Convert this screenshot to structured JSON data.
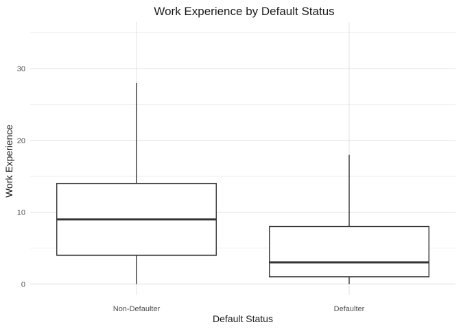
{
  "chart_data": {
    "type": "box",
    "title": "Work Experience by Default Status",
    "xlabel": "Default Status",
    "ylabel": "Work Experience",
    "ylim": [
      -1.5,
      36.5
    ],
    "y_ticks": [
      0,
      10,
      20,
      30
    ],
    "grid": true,
    "legend": "none",
    "categories": [
      "Non-Defaulter",
      "Defaulter"
    ],
    "boxes": [
      {
        "category": "Non-Defaulter",
        "min": 0,
        "q1": 4,
        "median": 9,
        "q3": 14,
        "max": 28
      },
      {
        "category": "Defaulter",
        "min": 0,
        "q1": 1,
        "median": 3,
        "q3": 8,
        "max": 18
      }
    ],
    "colors": {
      "box_fill": "#ffffff",
      "box_line": "#333333",
      "grid": "#ebebeb"
    }
  }
}
